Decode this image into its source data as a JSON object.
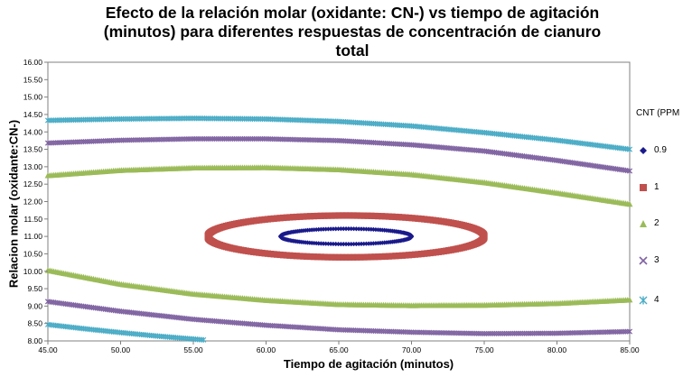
{
  "chart_data": {
    "type": "scatter",
    "title": "Efecto de la relación molar (oxidante: CN-) vs tiempo de agitación (minutos) para diferentes respuestas de concentración de cianuro total",
    "title_lines": [
      "Efecto de la relación molar (oxidante: CN-) vs tiempo de agitación",
      "(minutos) para diferentes respuestas de concentración de cianuro",
      "total"
    ],
    "xlabel": "Tiempo de agitación (minutos)",
    "ylabel": "Relacion molar (oxidante:CN-)",
    "xlim": [
      45,
      85
    ],
    "ylim": [
      8,
      16
    ],
    "x_ticks": [
      "45.00",
      "50.00",
      "55.00",
      "60.00",
      "65.00",
      "70.00",
      "75.00",
      "80.00",
      "85.00"
    ],
    "y_ticks": [
      "8.00",
      "8.50",
      "9.00",
      "9.50",
      "10.00",
      "10.50",
      "11.00",
      "11.50",
      "12.00",
      "12.50",
      "13.00",
      "13.50",
      "14.00",
      "14.50",
      "15.00",
      "15.50",
      "16.00"
    ],
    "legend_title": "CNT (PPM",
    "legend_position": "right",
    "grid": false,
    "series": [
      {
        "name": "0.9",
        "color": "#1a1a8c",
        "marker": "diamond",
        "contour": {
          "shape": "ellipse",
          "center": [
            65.5,
            11.0
          ],
          "rx": 4.5,
          "ry": 0.22
        }
      },
      {
        "name": "1",
        "color": "#c0504d",
        "marker": "square",
        "contour": {
          "shape": "ellipse",
          "center": [
            65.5,
            11.0
          ],
          "rx": 9.5,
          "ry": 0.6
        }
      },
      {
        "name": "2",
        "color": "#9bbb59",
        "marker": "triangle",
        "upper": {
          "x": [
            45,
            50,
            55,
            60,
            65,
            70,
            75,
            80,
            85
          ],
          "y": [
            12.75,
            12.9,
            12.97,
            12.98,
            12.92,
            12.78,
            12.55,
            12.25,
            11.93
          ]
        },
        "lower": {
          "x": [
            45,
            50,
            55,
            60,
            65,
            70,
            75,
            80,
            85
          ],
          "y": [
            10.03,
            9.63,
            9.35,
            9.17,
            9.05,
            9.02,
            9.03,
            9.08,
            9.18
          ]
        }
      },
      {
        "name": "3",
        "color": "#8064a2",
        "marker": "x",
        "upper": {
          "x": [
            45,
            50,
            55,
            60,
            65,
            70,
            75,
            80,
            85
          ],
          "y": [
            13.68,
            13.76,
            13.8,
            13.8,
            13.75,
            13.63,
            13.45,
            13.18,
            12.88
          ]
        },
        "lower": {
          "x": [
            45,
            50,
            55,
            60,
            65,
            70,
            75,
            80,
            85
          ],
          "y": [
            9.13,
            8.85,
            8.62,
            8.45,
            8.32,
            8.25,
            8.21,
            8.22,
            8.27
          ]
        }
      },
      {
        "name": "4",
        "color": "#4bacc6",
        "marker": "asterisk",
        "upper": {
          "x": [
            45,
            50,
            55,
            60,
            65,
            70,
            75,
            80,
            85
          ],
          "y": [
            14.33,
            14.37,
            14.39,
            14.37,
            14.3,
            14.17,
            13.98,
            13.76,
            13.5
          ]
        },
        "lower": {
          "x": [
            45,
            47.5,
            50,
            52.5,
            55.7
          ],
          "y": [
            8.47,
            8.35,
            8.24,
            8.14,
            8.03
          ]
        }
      }
    ]
  }
}
